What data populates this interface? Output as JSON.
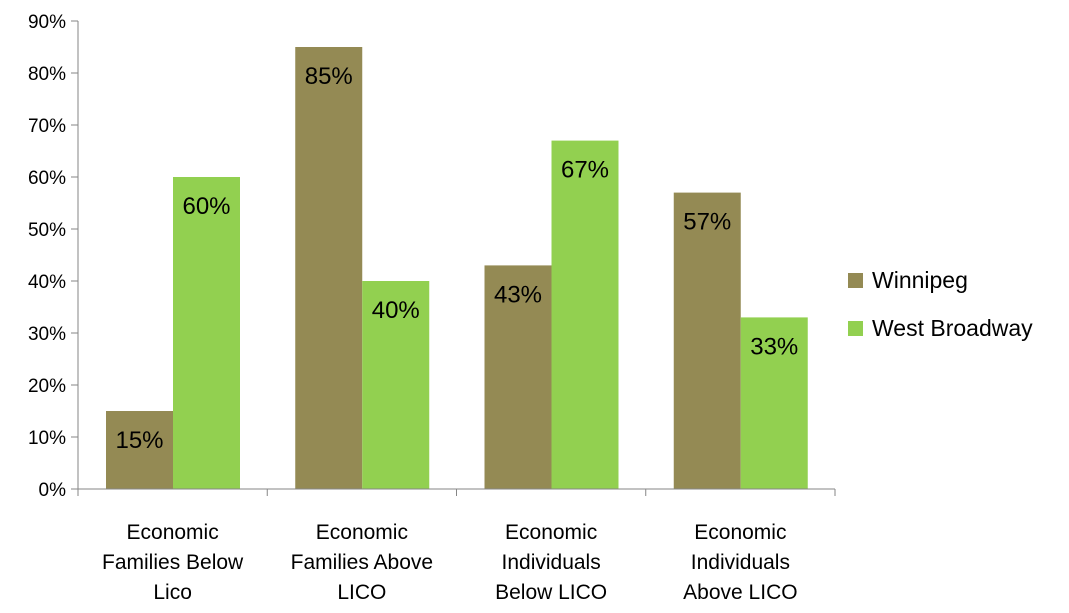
{
  "chart_data": {
    "type": "bar",
    "categories": [
      "Economic Families Below Lico",
      "Economic Families Above LICO",
      "Economic Individuals Below LICO",
      "Economic Individuals Above LICO"
    ],
    "category_lines": [
      [
        "Economic",
        "Families Below",
        "Lico"
      ],
      [
        "Economic",
        "Families Above",
        "LICO"
      ],
      [
        "Economic",
        "Individuals",
        "Below LICO"
      ],
      [
        "Economic",
        "Individuals",
        "Above LICO"
      ]
    ],
    "series": [
      {
        "name": "Winnipeg",
        "values": [
          15,
          85,
          43,
          57
        ],
        "labels": [
          "15%",
          "85%",
          "43%",
          "57%"
        ],
        "color": "#948A54"
      },
      {
        "name": "West Broadway",
        "values": [
          60,
          40,
          67,
          33
        ],
        "labels": [
          "60%",
          "40%",
          "67%",
          "33%"
        ],
        "color": "#92D050"
      }
    ],
    "ylim": [
      0,
      90
    ],
    "yticks": [
      0,
      10,
      20,
      30,
      40,
      50,
      60,
      70,
      80,
      90
    ],
    "ytick_labels": [
      "0%",
      "10%",
      "20%",
      "30%",
      "40%",
      "50%",
      "60%",
      "70%",
      "80%",
      "90%"
    ],
    "unit": "%",
    "grid": false,
    "legend_position": "right",
    "title": "",
    "xlabel": "",
    "ylabel": ""
  }
}
